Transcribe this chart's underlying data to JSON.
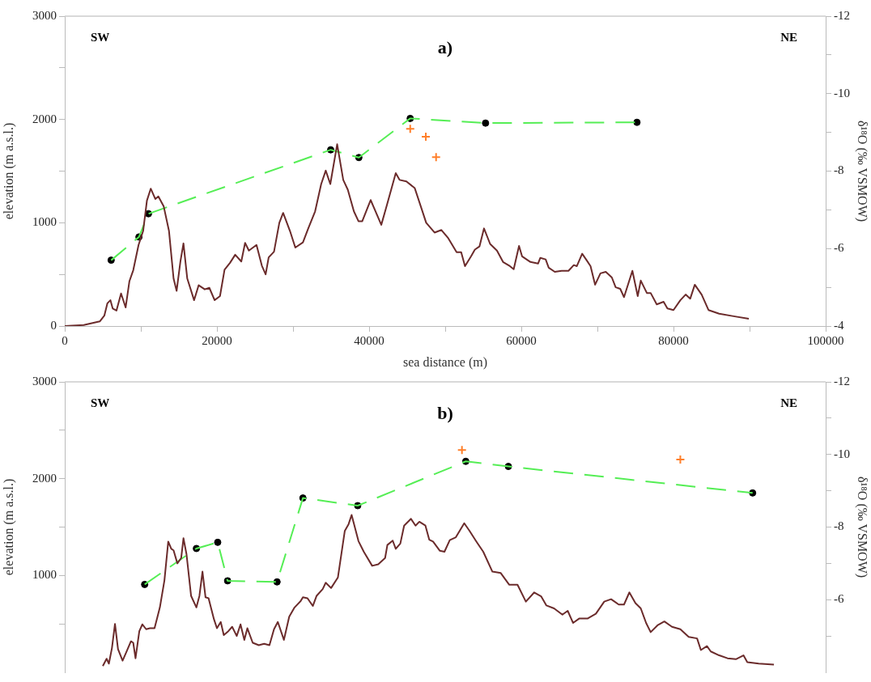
{
  "chart_data": [
    {
      "type": "line",
      "title": "a)",
      "xlabel": "sea distance (m)",
      "ylabel": "elevation (m a.s.l.)",
      "y2label": "δ¹⁸O (‰ VSMOW)",
      "annotations": [
        "SW",
        "NE"
      ],
      "xlim": [
        0,
        100000
      ],
      "xticks": [
        0,
        {
          "value": 10000,
          "label": null
        },
        20000,
        {
          "value": 30000,
          "label": null
        },
        40000,
        {
          "value": 50000,
          "label": null
        },
        60000,
        {
          "value": 70000,
          "label": null
        },
        80000,
        {
          "value": 90000,
          "label": null
        },
        100000
      ],
      "ylim": [
        0,
        3000
      ],
      "yticks": [
        0,
        {
          "value": 500,
          "label": null
        },
        1000,
        {
          "value": 1500,
          "label": null
        },
        2000,
        {
          "value": 2500,
          "label": null
        },
        3000
      ],
      "y2lim": [
        -4,
        -12
      ],
      "y2ticks": [
        -4,
        {
          "value": -5,
          "label": null
        },
        -6,
        {
          "value": -7,
          "label": null
        },
        -8,
        {
          "value": -9,
          "label": null
        },
        -10,
        {
          "value": -11,
          "label": null
        },
        -12
      ],
      "grid": false,
      "legend": false,
      "series": [
        {
          "type": "line",
          "color": "#6b2b2b",
          "marker": "none",
          "line_style": "solid",
          "x": [
            0,
            2500,
            4600,
            5200,
            5600,
            6000,
            6300,
            6800,
            7400,
            8000,
            8500,
            9000,
            9700,
            10300,
            10800,
            11300,
            11900,
            12300,
            13000,
            13700,
            14300,
            14700,
            15200,
            15600,
            16100,
            17000,
            17600,
            18400,
            19000,
            19700,
            20400,
            21000,
            21700,
            22400,
            23200,
            23700,
            24200,
            25200,
            25900,
            26400,
            26800,
            27500,
            28200,
            28700,
            29600,
            30300,
            31300,
            32000,
            32900,
            33700,
            34300,
            34900,
            35800,
            36600,
            37200,
            38000,
            38600,
            39100,
            40200,
            41600,
            42200,
            43500,
            44000,
            44900,
            46000,
            47500,
            48600,
            49500,
            50400,
            51500,
            52100,
            52600,
            53400,
            53900,
            54500,
            55100,
            55900,
            56800,
            57600,
            58500,
            59000,
            59700,
            60100,
            61200,
            62200,
            62500,
            63200,
            63600,
            64400,
            65300,
            66200,
            66900,
            67300,
            68000,
            68600,
            69100,
            69700,
            70400,
            71100,
            71900,
            72400,
            73000,
            73500,
            74600,
            75300,
            75700,
            76500,
            77000,
            77800,
            78700,
            79200,
            80000,
            80900,
            81600,
            82200,
            82800,
            83700,
            84600,
            86000,
            87900,
            89900
          ],
          "values": [
            0,
            10,
            45,
            100,
            220,
            250,
            170,
            150,
            315,
            180,
            435,
            540,
            785,
            920,
            1215,
            1330,
            1230,
            1255,
            1160,
            920,
            460,
            340,
            625,
            800,
            460,
            250,
            395,
            355,
            370,
            250,
            290,
            545,
            610,
            690,
            625,
            805,
            730,
            785,
            585,
            500,
            665,
            720,
            1000,
            1095,
            920,
            760,
            810,
            945,
            1110,
            1375,
            1505,
            1375,
            1760,
            1415,
            1320,
            1110,
            1015,
            1015,
            1220,
            980,
            1135,
            1480,
            1415,
            1400,
            1335,
            1000,
            905,
            930,
            850,
            715,
            715,
            580,
            675,
            740,
            770,
            945,
            795,
            730,
            620,
            580,
            550,
            775,
            675,
            620,
            605,
            660,
            645,
            565,
            525,
            535,
            535,
            590,
            580,
            700,
            635,
            580,
            400,
            510,
            525,
            470,
            375,
            360,
            280,
            535,
            290,
            440,
            320,
            320,
            210,
            235,
            170,
            155,
            250,
            305,
            265,
            400,
            305,
            155,
            120,
            95,
            70
          ]
        },
        {
          "type": "line",
          "axis": "y2",
          "color": "#55ee55",
          "marker": "none",
          "line_style": "dashed",
          "x": [
            6100,
            9750,
            11000,
            34950,
            38650,
            45400,
            55300,
            75200
          ],
          "values": [
            -5.7,
            -6.3,
            -6.9,
            -8.55,
            -8.35,
            -9.36,
            -9.24,
            -9.26
          ]
        },
        {
          "type": "scatter",
          "axis": "y2",
          "color": "#000000",
          "marker": "circle",
          "x": [
            6100,
            9750,
            11000,
            34950,
            38650,
            45400,
            55300,
            75200
          ],
          "values": [
            -5.7,
            -6.3,
            -6.9,
            -8.55,
            -8.35,
            -9.36,
            -9.24,
            -9.26
          ]
        },
        {
          "type": "scatter",
          "axis": "y2",
          "color": "#ff7f2a",
          "marker": "cross",
          "x": [
            45400,
            47450,
            48800
          ],
          "values": [
            -9.09,
            -8.89,
            -8.36
          ]
        }
      ]
    },
    {
      "type": "line",
      "title": "b)",
      "ylabel": "elevation (m a.s.l.)",
      "y2label": "δ¹⁸O (‰ VSMOW)",
      "annotations": [
        "SW",
        "NE"
      ],
      "tick_labels": "y",
      "xlim": [
        0,
        100000
      ],
      "ylim": [
        0,
        3000
      ],
      "yticks": [
        {
          "value": 500,
          "label": null
        },
        1000,
        {
          "value": 1500,
          "label": null
        },
        2000,
        {
          "value": 2500,
          "label": null
        },
        3000
      ],
      "y2lim": [
        -4,
        -12
      ],
      "y2ticks": [
        {
          "value": -5,
          "label": null
        },
        -6,
        {
          "value": -7,
          "label": null
        },
        -8,
        {
          "value": -9,
          "label": null
        },
        -10,
        {
          "value": -11,
          "label": null
        },
        -12
      ],
      "grid": false,
      "legend": false,
      "series": [
        {
          "type": "line",
          "color": "#6b2b2b",
          "marker": "none",
          "line_style": "solid",
          "x": [
            5000,
            5500,
            5800,
            6200,
            6600,
            7000,
            7600,
            8100,
            8700,
            9000,
            9300,
            9800,
            10200,
            10700,
            11200,
            11800,
            12500,
            13100,
            13600,
            14000,
            14300,
            14800,
            15300,
            15600,
            16000,
            16600,
            17300,
            17700,
            18100,
            18500,
            18900,
            19600,
            20000,
            20500,
            20900,
            21500,
            22000,
            22600,
            23100,
            23600,
            24000,
            24700,
            25500,
            26200,
            26900,
            27500,
            28000,
            28800,
            29500,
            30200,
            31000,
            31300,
            31900,
            32600,
            33100,
            33900,
            34300,
            35000,
            35900,
            36800,
            37300,
            37700,
            38600,
            39300,
            40400,
            41200,
            42100,
            42400,
            43100,
            43500,
            44100,
            44600,
            45500,
            46100,
            46600,
            47400,
            47900,
            48400,
            49300,
            49900,
            50600,
            51400,
            52500,
            53200,
            54100,
            55000,
            56200,
            57300,
            58400,
            59500,
            60600,
            61700,
            62600,
            63300,
            64300,
            65400,
            66100,
            66800,
            67600,
            68700,
            69800,
            70900,
            71800,
            72800,
            73500,
            74200,
            75000,
            75700,
            76400,
            77000,
            77900,
            78800,
            79800,
            80900,
            82000,
            83100,
            83600,
            84400,
            84900,
            86000,
            87100,
            88200,
            89200,
            89700,
            91200,
            93200
          ],
          "values": [
            65,
            140,
            90,
            250,
            500,
            240,
            120,
            210,
            320,
            305,
            145,
            425,
            495,
            445,
            455,
            455,
            670,
            950,
            1350,
            1275,
            1260,
            1125,
            1180,
            1385,
            1220,
            790,
            670,
            790,
            1040,
            775,
            765,
            550,
            455,
            520,
            385,
            425,
            470,
            375,
            495,
            335,
            455,
            305,
            280,
            295,
            280,
            445,
            520,
            335,
            575,
            670,
            735,
            775,
            765,
            685,
            790,
            860,
            925,
            870,
            980,
            1460,
            1530,
            1625,
            1355,
            1245,
            1100,
            1115,
            1180,
            1315,
            1360,
            1275,
            1330,
            1515,
            1585,
            1515,
            1555,
            1515,
            1370,
            1350,
            1255,
            1245,
            1365,
            1395,
            1540,
            1460,
            1350,
            1245,
            1040,
            1025,
            905,
            905,
            730,
            825,
            785,
            690,
            660,
            595,
            635,
            510,
            555,
            555,
            605,
            730,
            755,
            700,
            700,
            825,
            715,
            660,
            510,
            415,
            485,
            525,
            470,
            445,
            365,
            350,
            230,
            270,
            215,
            175,
            145,
            135,
            175,
            105,
            90,
            80
          ]
        },
        {
          "type": "line",
          "axis": "y2",
          "color": "#55ee55",
          "marker": "none",
          "line_style": "dashed",
          "x": [
            10500,
            17300,
            20100,
            21400,
            27900,
            31300,
            38500,
            52700,
            58300,
            90400
          ],
          "values": [
            -6.42,
            -7.41,
            -7.58,
            -6.52,
            -6.49,
            -8.8,
            -8.59,
            -9.81,
            -9.67,
            -8.94
          ]
        },
        {
          "type": "scatter",
          "axis": "y2",
          "color": "#000000",
          "marker": "circle",
          "x": [
            10500,
            17300,
            20100,
            21400,
            27900,
            31300,
            38500,
            52700,
            58300,
            90400
          ],
          "values": [
            -6.42,
            -7.41,
            -7.58,
            -6.52,
            -6.49,
            -8.8,
            -8.59,
            -9.81,
            -9.67,
            -8.94
          ]
        },
        {
          "type": "scatter",
          "axis": "y2",
          "color": "#ff7f2a",
          "marker": "cross",
          "x": [
            52200,
            80900
          ],
          "values": [
            -10.12,
            -9.86
          ]
        }
      ]
    }
  ]
}
